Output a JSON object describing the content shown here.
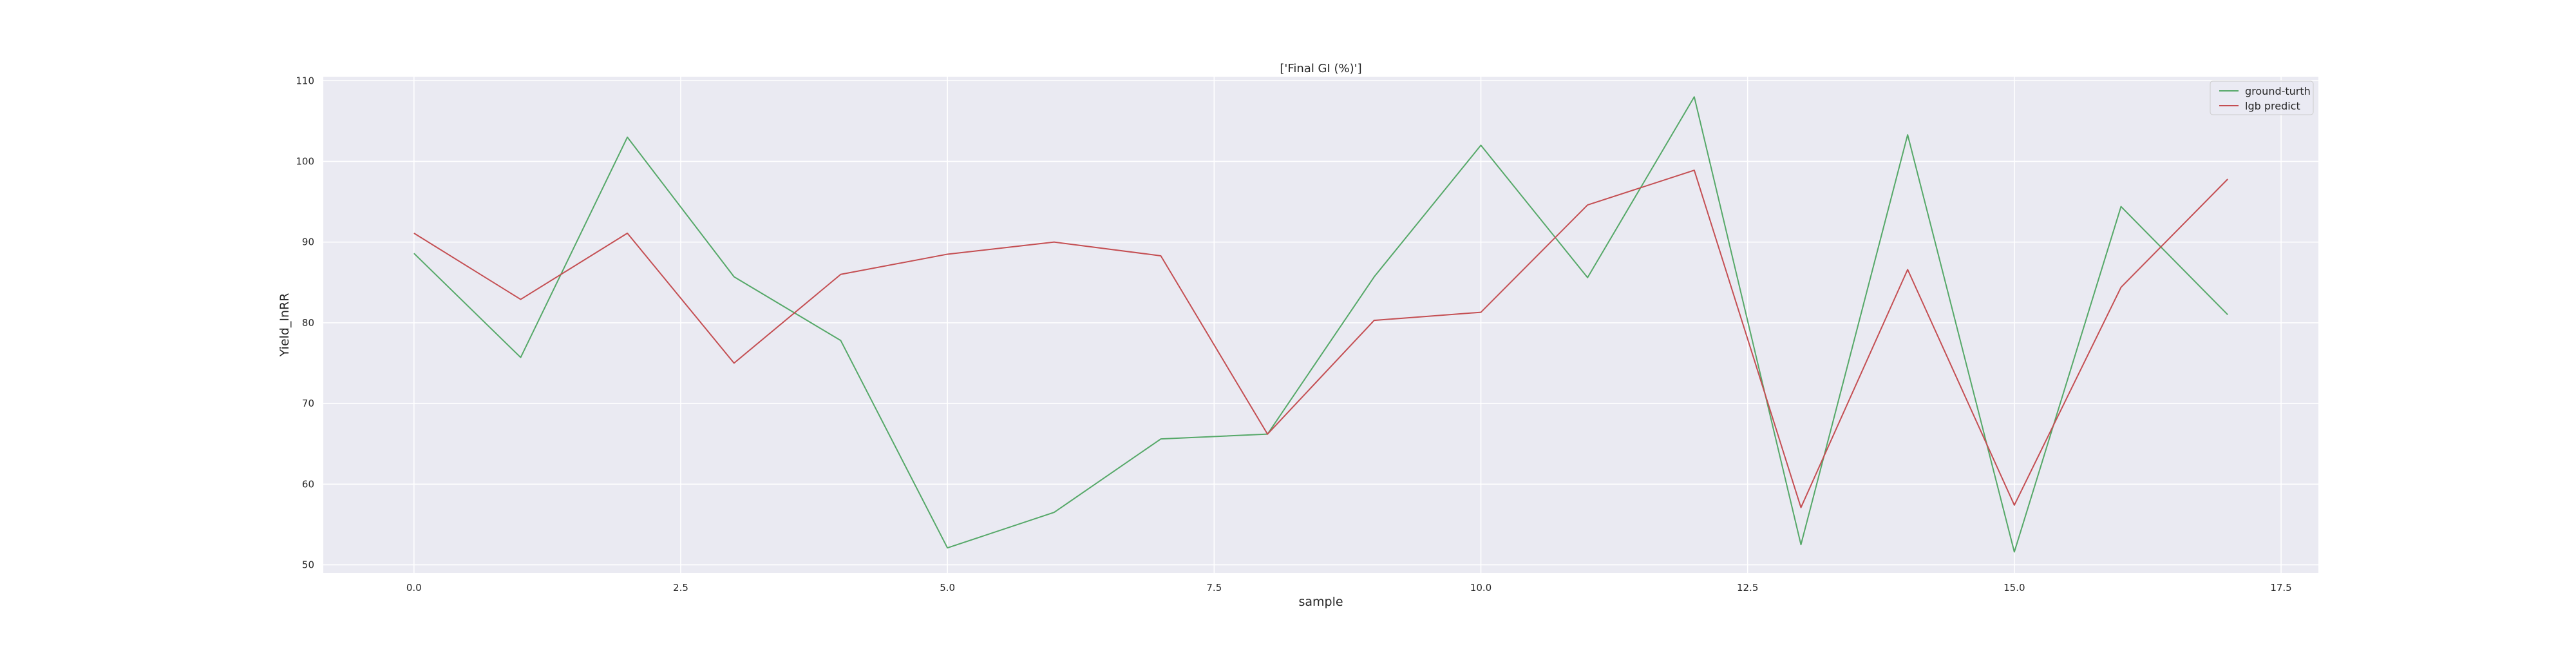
{
  "chart_data": {
    "type": "line",
    "title": "['Final GI (%)']",
    "xlabel": "sample",
    "ylabel": "Yield_InRR",
    "x": [
      0,
      1,
      2,
      3,
      4,
      5,
      6,
      7,
      8,
      9,
      10,
      11,
      12,
      13,
      14,
      15,
      16,
      17
    ],
    "xlim": [
      -0.85,
      17.85
    ],
    "ylim": [
      49,
      110.5
    ],
    "xticks": [
      0.0,
      2.5,
      5.0,
      7.5,
      10.0,
      12.5,
      15.0,
      17.5
    ],
    "xtick_labels": [
      "0.0",
      "2.5",
      "5.0",
      "7.5",
      "10.0",
      "12.5",
      "15.0",
      "17.5"
    ],
    "yticks": [
      50,
      60,
      70,
      80,
      90,
      100,
      110
    ],
    "ytick_labels": [
      "50",
      "60",
      "70",
      "80",
      "90",
      "100",
      "110"
    ],
    "grid": true,
    "legend_position": "top-right",
    "series": [
      {
        "name": "ground-turth",
        "color": "#55a868",
        "values": [
          88.6,
          75.7,
          103.0,
          85.7,
          77.8,
          52.1,
          56.5,
          65.6,
          66.2,
          85.7,
          102.0,
          85.6,
          108.0,
          52.5,
          103.3,
          51.6,
          94.4,
          81.0
        ]
      },
      {
        "name": "lgb predict",
        "color": "#c44e52",
        "values": [
          91.1,
          82.9,
          91.1,
          75.0,
          86.0,
          88.5,
          90.0,
          88.3,
          66.2,
          80.3,
          81.3,
          94.6,
          98.9,
          57.1,
          86.6,
          57.4,
          84.4,
          97.8
        ]
      }
    ]
  }
}
